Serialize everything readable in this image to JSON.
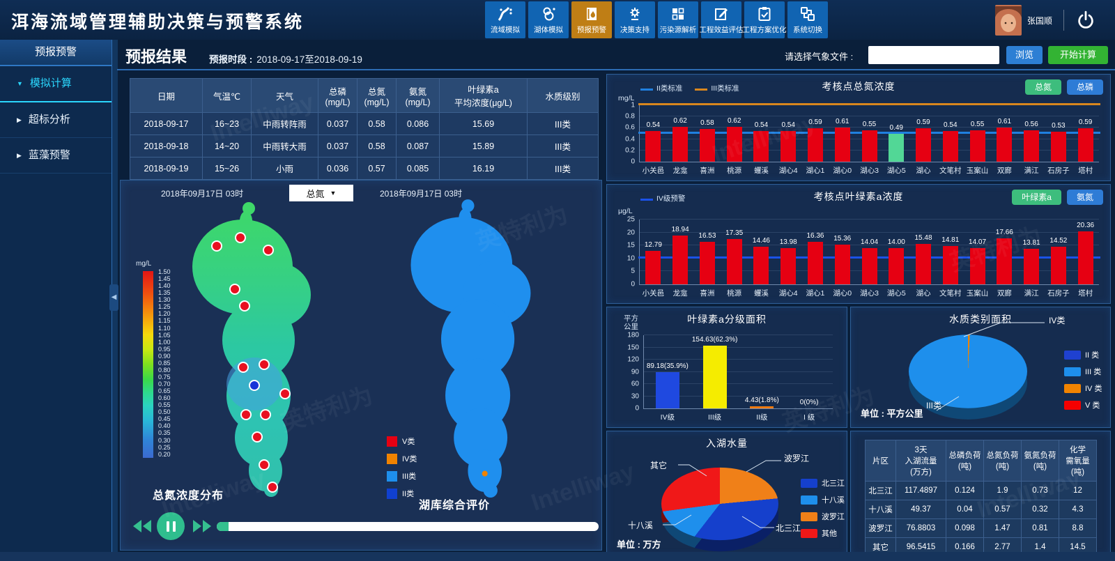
{
  "header": {
    "title": "洱海流域管理辅助决策与预警系统",
    "nav": [
      {
        "id": "basin-sim",
        "label": "流域模拟",
        "active": false
      },
      {
        "id": "lake-sim",
        "label": "湖体模拟",
        "active": false
      },
      {
        "id": "forecast-warning",
        "label": "预报预警",
        "active": true
      },
      {
        "id": "decision-support",
        "label": "决策支持",
        "active": false
      },
      {
        "id": "pollution-analysis",
        "label": "污染源解析",
        "active": false
      },
      {
        "id": "benefit-eval",
        "label": "工程效益评估",
        "active": false
      },
      {
        "id": "plan-optimize",
        "label": "工程方案优化",
        "active": false
      },
      {
        "id": "system-switch",
        "label": "系统切换",
        "active": false
      }
    ],
    "user_name": "张国顺"
  },
  "sidebar": {
    "title": "预报预警",
    "items": [
      {
        "label": "模拟计算",
        "active": true
      },
      {
        "label": "超标分析",
        "active": false
      },
      {
        "label": "蓝藻预警",
        "active": false
      }
    ]
  },
  "toolbar": {
    "page_title": "预报结果",
    "period_label": "预报时段 :",
    "period_value": "2018-09-17至2018-09-19",
    "weather_file_label": "请选择气象文件 :",
    "weather_file_value": "",
    "browse_label": "浏览",
    "start_label": "开始计算"
  },
  "forecast_table": {
    "headers": [
      "日期",
      "气温℃",
      "天气",
      "总磷\n(mg/L)",
      "总氮\n(mg/L)",
      "氨氮\n(mg/L)",
      "叶绿素a\n平均浓度(μg/L)",
      "水质级别"
    ],
    "rows": [
      [
        "2018-09-17",
        "16~23",
        "中雨转阵雨",
        "0.037",
        "0.58",
        "0.086",
        "15.69",
        "III类"
      ],
      [
        "2018-09-18",
        "14~20",
        "中雨转大雨",
        "0.037",
        "0.58",
        "0.087",
        "15.89",
        "III类"
      ],
      [
        "2018-09-19",
        "15~26",
        "小雨",
        "0.036",
        "0.57",
        "0.085",
        "16.19",
        "III类"
      ]
    ]
  },
  "maps": {
    "left": {
      "timestamp": "2018年09月17日 03时",
      "selector": "总氮",
      "title": "总氮浓度分布",
      "scale_unit": "mg/L",
      "scale_ticks": [
        "1.50",
        "1.45",
        "1.40",
        "1.35",
        "1.30",
        "1.25",
        "1.20",
        "1.15",
        "1.10",
        "1.05",
        "1.00",
        "0.95",
        "0.90",
        "0.85",
        "0.80",
        "0.75",
        "0.70",
        "0.65",
        "0.60",
        "0.55",
        "0.50",
        "0.45",
        "0.40",
        "0.35",
        "0.30",
        "0.25",
        "0.20"
      ]
    },
    "right": {
      "timestamp": "2018年09月17日 03时",
      "title": "湖库综合评价"
    },
    "class_legend": [
      {
        "label": "V类",
        "color": "#e60012"
      },
      {
        "label": "IV类",
        "color": "#f08300"
      },
      {
        "label": "III类",
        "color": "#1e8fec"
      },
      {
        "label": "II类",
        "color": "#1040d0"
      }
    ]
  },
  "chart_data": [
    {
      "id": "tn-concentration",
      "type": "bar",
      "title": "考核点总氮浓度",
      "ylabel": "mg/L",
      "ylim": [
        0,
        1
      ],
      "yticks": [
        0,
        0.2,
        0.4,
        0.6,
        0.8,
        1
      ],
      "categories": [
        "小关邑",
        "龙龛",
        "喜洲",
        "桃源",
        "蠼溪",
        "湖心4",
        "湖心1",
        "湖心0",
        "湖心3",
        "湖心5",
        "湖心",
        "文笔村",
        "玉案山",
        "双廊",
        "满江",
        "石房子",
        "塔村"
      ],
      "values": [
        0.54,
        0.62,
        0.58,
        0.62,
        0.54,
        0.54,
        0.59,
        0.61,
        0.55,
        0.49,
        0.59,
        0.54,
        0.55,
        0.61,
        0.56,
        0.53,
        0.59
      ],
      "bar_color": "#e60012",
      "highlight": {
        "index": 9,
        "color": "#52d796"
      },
      "ref_lines": [
        {
          "label": "II类标准",
          "value": 0.5,
          "color": "#2080e0",
          "thick": 2.5
        },
        {
          "label": "III类标准",
          "value": 1,
          "color": "#d9871e",
          "thick": 3.5
        }
      ],
      "buttons": [
        {
          "label": "总氮",
          "color": "#3dbd7d"
        },
        {
          "label": "总磷",
          "color": "#2e7cd6"
        }
      ],
      "grid": true,
      "legend_position": "top-left"
    },
    {
      "id": "chla-concentration",
      "type": "bar",
      "title": "考核点叶绿素a浓度",
      "ylabel": "μg/L",
      "ylim": [
        0,
        25
      ],
      "yticks": [
        0,
        5,
        10,
        15,
        20,
        25
      ],
      "categories": [
        "小关邑",
        "龙龛",
        "喜洲",
        "桃源",
        "蠼溪",
        "湖心4",
        "湖心1",
        "湖心0",
        "湖心3",
        "湖心5",
        "湖心",
        "文笔村",
        "玉案山",
        "双廊",
        "满江",
        "石房子",
        "塔村"
      ],
      "values": [
        12.79,
        18.94,
        16.53,
        17.35,
        14.46,
        13.98,
        16.36,
        15.36,
        14.04,
        14.0,
        15.48,
        14.81,
        14.07,
        17.66,
        13.81,
        14.52,
        20.36
      ],
      "bar_color": "#e60012",
      "ref_lines": [
        {
          "label": "IV级预警",
          "value": 10,
          "color": "#1b52e8",
          "thick": 3
        }
      ],
      "buttons": [
        {
          "label": "叶绿素a",
          "color": "#3dbd7d"
        },
        {
          "label": "氨氮",
          "color": "#2e7cd6"
        }
      ],
      "grid": true,
      "legend_position": "top-left"
    },
    {
      "id": "chla-grade-area",
      "type": "bar",
      "title": "叶绿素a分级面积",
      "ylabel": "平方\n公里",
      "ylim": [
        0,
        180
      ],
      "yticks": [
        0,
        30,
        60,
        90,
        120,
        150,
        180
      ],
      "categories": [
        "IV级",
        "III级",
        "II级",
        "I 级"
      ],
      "values": [
        89.18,
        154.63,
        4.43,
        0
      ],
      "value_labels": [
        "89.18(35.9%)",
        "154.63(62.3%)",
        "4.43(1.8%)",
        "0(0%)"
      ],
      "bar_colors": [
        "#1f49e0",
        "#f5ec00",
        "#ef7a10",
        "#8899aa"
      ],
      "grid": true
    },
    {
      "id": "water-quality-area",
      "type": "pie",
      "title": "水质类别面积",
      "unit_label": "单位 : 平方公里",
      "slices": [
        {
          "label": "IV类",
          "pct": 0.5,
          "color": "#f08300"
        },
        {
          "label": "III类",
          "pct": 99.5,
          "color": "#1e8fec"
        }
      ],
      "callouts": [
        "IV类",
        "III类"
      ],
      "legend": [
        {
          "label": "II 类",
          "color": "#1f41d0"
        },
        {
          "label": "III 类",
          "color": "#1e8fec"
        },
        {
          "label": "IV 类",
          "color": "#f08300"
        },
        {
          "label": "V 类",
          "color": "#f50000"
        }
      ]
    },
    {
      "id": "inflow-volume",
      "type": "pie",
      "title": "入湖水量",
      "unit_label": "单位 : 万方",
      "slices": [
        {
          "label": "波罗江",
          "value": 76.8803,
          "color": "#f08018"
        },
        {
          "label": "北三江",
          "value": 117.4897,
          "color": "#1540cc"
        },
        {
          "label": "十八溪",
          "value": 49.37,
          "color": "#1e8fec"
        },
        {
          "label": "其它",
          "value": 96.5415,
          "color": "#f01818"
        }
      ],
      "legend": [
        {
          "label": "北三江",
          "color": "#1540cc"
        },
        {
          "label": "十八溪",
          "color": "#1e8fec"
        },
        {
          "label": "波罗江",
          "color": "#f08018"
        },
        {
          "label": "其他",
          "color": "#f01818"
        }
      ]
    }
  ],
  "load_table": {
    "headers": [
      "片区",
      "3天\n入湖流量\n(万方)",
      "总磷负荷\n(吨)",
      "总氮负荷\n(吨)",
      "氨氮负荷\n(吨)",
      "化学\n需氧量\n(吨)"
    ],
    "rows": [
      [
        "北三江",
        "117.4897",
        "0.124",
        "1.9",
        "0.73",
        "12"
      ],
      [
        "十八溪",
        "49.37",
        "0.04",
        "0.57",
        "0.32",
        "4.3"
      ],
      [
        "波罗江",
        "76.8803",
        "0.098",
        "1.47",
        "0.81",
        "8.8"
      ],
      [
        "其它",
        "96.5415",
        "0.166",
        "2.77",
        "1.4",
        "14.5"
      ]
    ]
  },
  "watermark": {
    "en": "Intelliway",
    "zh": "英特利为"
  }
}
